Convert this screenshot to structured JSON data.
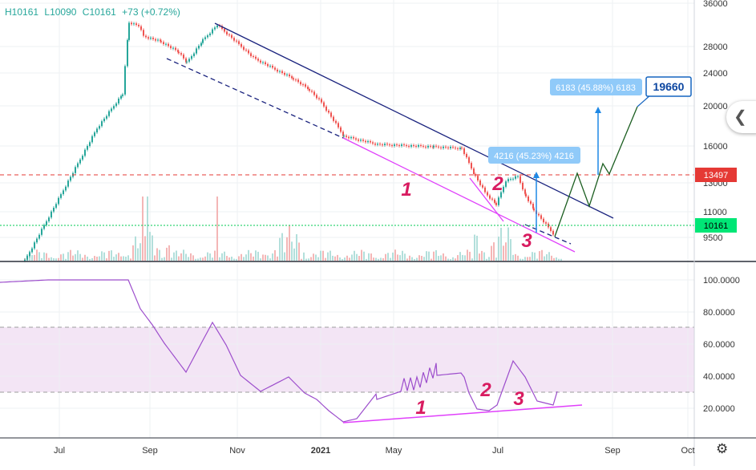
{
  "legend": {
    "high": "H10161",
    "low": "L10090",
    "close": "C10161",
    "change": "+73 (+0.72%)"
  },
  "price_axis": {
    "ticks": [
      "36000",
      "28000",
      "24000",
      "20000",
      "16000",
      "13000",
      "11000",
      "9500"
    ],
    "badge_resistance": "13497",
    "badge_last": "10161"
  },
  "rsi_axis": {
    "ticks": [
      "100.0000",
      "80.0000",
      "60.0000",
      "40.0000",
      "20.0000"
    ]
  },
  "time_axis": {
    "labels": [
      "Jul",
      "Sep",
      "Nov",
      "2021",
      "May",
      "Jul",
      "Sep",
      "Oct"
    ]
  },
  "annotations": {
    "measure_1": "4216 (45.23%) 4216",
    "measure_2": "6183 (45.88%) 6183",
    "target_callout": "19660",
    "price_wave_labels": [
      "1",
      "2",
      "3"
    ],
    "rsi_wave_labels": [
      "1",
      "2",
      "3"
    ]
  },
  "colors": {
    "up": "#26a69a",
    "down": "#ef5350",
    "trend_blue": "#1a237e",
    "trend_magenta": "#e040fb",
    "resistance_red": "#e53935",
    "last_green": "#00c853",
    "rsi_line": "#9c4dcc",
    "rsi_band": "#f3e5f5",
    "label_pink": "#d81b60",
    "measure_box": "#90caf9",
    "projection": "#1b5e20"
  },
  "icons": {
    "scroll_button": "chevron-left-icon",
    "settings": "gear-icon"
  },
  "chart_data": {
    "type": "candlestick",
    "price_panel": {
      "resistance": 13497,
      "last": 10161,
      "projection_target": 19660,
      "projected_path": [
        10161,
        13400,
        11100,
        14500,
        13497,
        19660
      ]
    },
    "rsi_panel": {
      "overbought": 70,
      "oversold": 30,
      "ylim": [
        0,
        100
      ]
    }
  }
}
